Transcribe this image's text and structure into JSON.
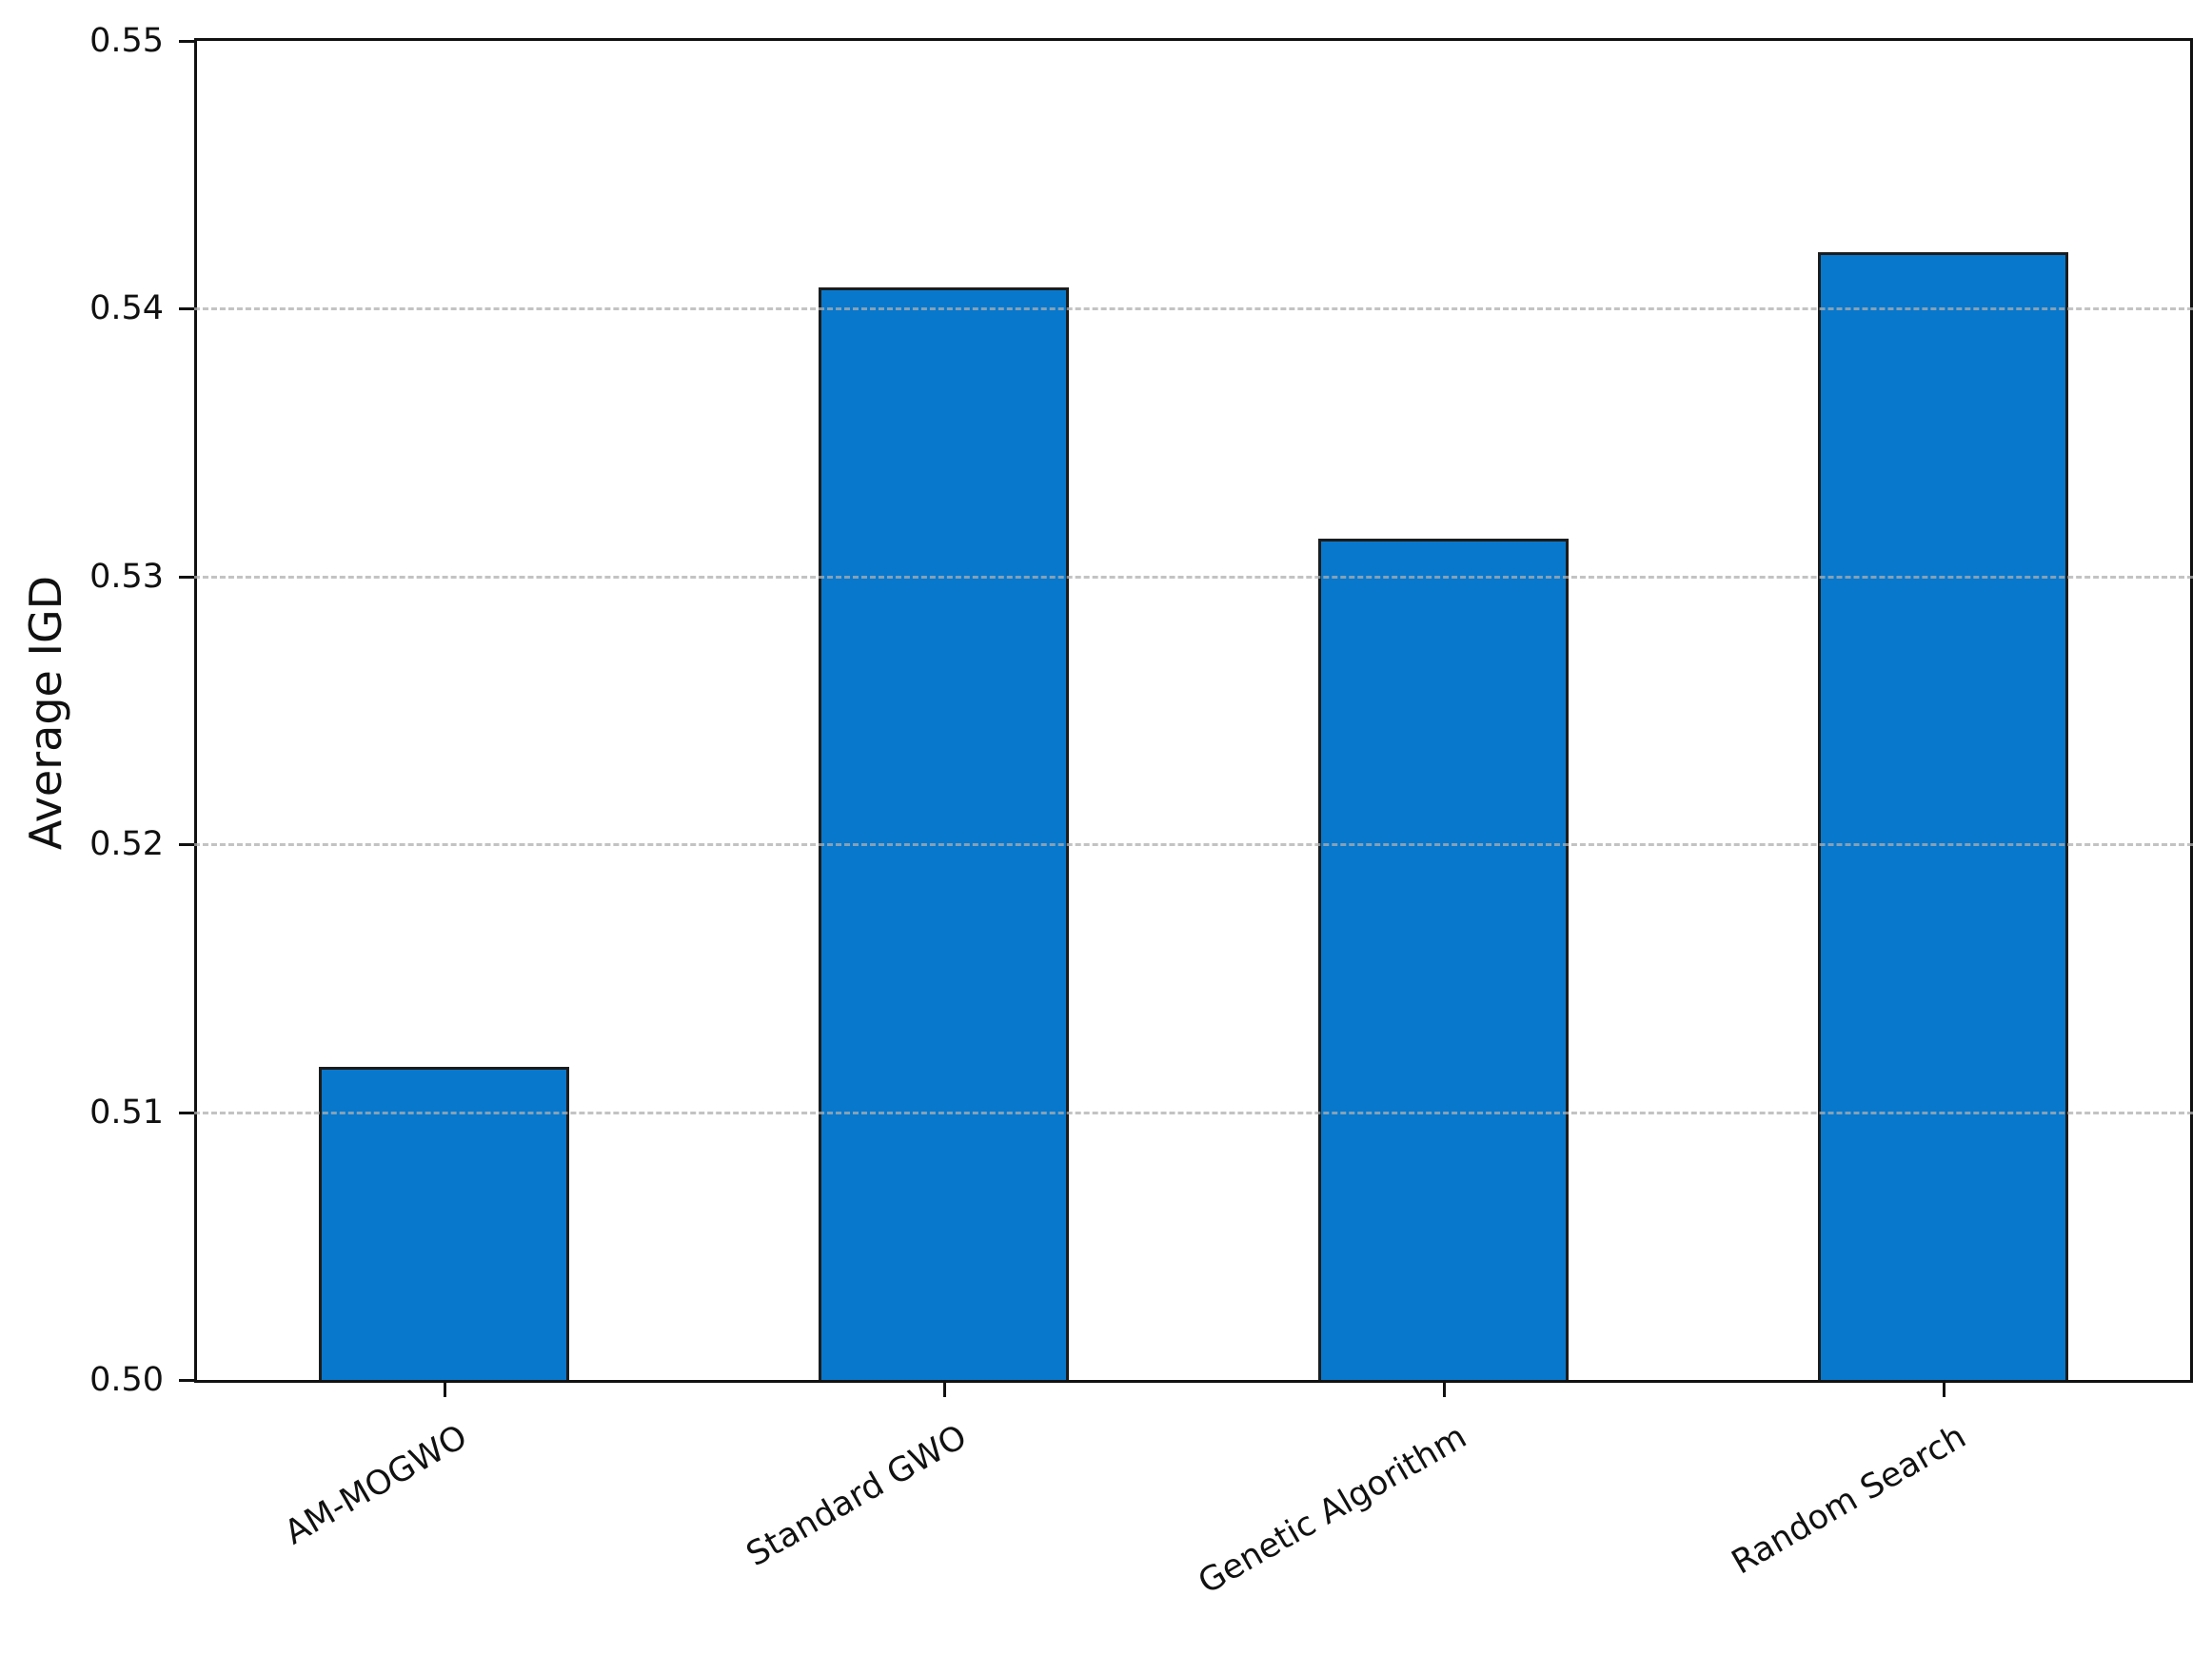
{
  "chart_data": {
    "type": "bar",
    "title": "",
    "categories": [
      "AM-MOGWO",
      "Standard GWO",
      "Genetic Algorithm",
      "Random Search"
    ],
    "values": [
      0.5117,
      0.5408,
      0.5314,
      0.5421
    ],
    "series": [
      {
        "name": "Average IGD",
        "values": [
          0.5117,
          0.5408,
          0.5314,
          0.5421
        ]
      }
    ],
    "xlabel": "",
    "ylabel": "Average IGD",
    "ylim": [
      0.5,
      0.55
    ],
    "ytick_step": 0.01,
    "ytick_labels": [
      "0.50",
      "0.51",
      "0.52",
      "0.53",
      "0.54",
      "0.55"
    ],
    "grid": "horizontal-dashed-inner-ticks",
    "grid_on": true,
    "legend": null,
    "legend_position": "none",
    "bar_color": "#0878cc",
    "bar_edge_color": "#1c1c1c",
    "gridline_color": "#afafaf",
    "bar_width_fraction": 0.5,
    "xtick_label_rotation_deg": 30
  }
}
